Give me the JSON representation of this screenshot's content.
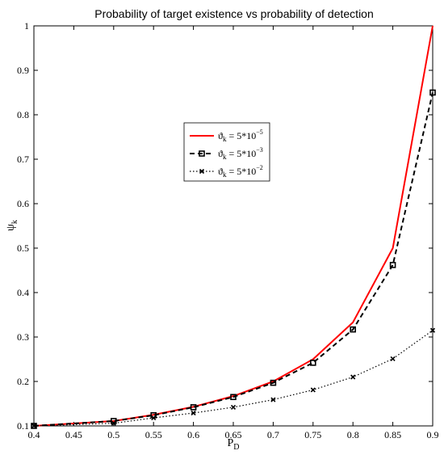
{
  "chart_data": {
    "type": "line",
    "title": "Probability of target existence vs probability of detection",
    "xlabel": "P_D",
    "ylabel": "ψ_k",
    "xlim": [
      0.4,
      0.9
    ],
    "ylim": [
      0.1,
      1.0
    ],
    "xticks": [
      "0.4",
      "0.45",
      "0.5",
      "0.55",
      "0.6",
      "0.65",
      "0.7",
      "0.75",
      "0.8",
      "0.85",
      "0.9"
    ],
    "yticks": [
      "0.1",
      "0.2",
      "0.3",
      "0.4",
      "0.5",
      "0.6",
      "0.7",
      "0.8",
      "0.9",
      "1"
    ],
    "x": [
      0.4,
      0.5,
      0.55,
      0.6,
      0.65,
      0.7,
      0.75,
      0.8,
      0.85,
      0.9
    ],
    "grid": false,
    "legend_position": "center",
    "series": [
      {
        "name": "ϑ_k = 5*10^-5",
        "legend_base": "ϑ",
        "legend_sub": "k",
        "legend_eq": " = 5*10",
        "legend_exp": "−5",
        "color": "#ff0000",
        "style": "solid",
        "marker": "none",
        "values": [
          0.1,
          0.111,
          0.125,
          0.143,
          0.167,
          0.2,
          0.25,
          0.333,
          0.5,
          1.0
        ]
      },
      {
        "name": "ϑ_k = 5*10^-3",
        "legend_base": "ϑ",
        "legend_sub": "k",
        "legend_eq": " = 5*10",
        "legend_exp": "−3",
        "color": "#000000",
        "style": "dashed",
        "marker": "square",
        "values": [
          0.1,
          0.111,
          0.124,
          0.142,
          0.165,
          0.197,
          0.242,
          0.317,
          0.462,
          0.85
        ]
      },
      {
        "name": "ϑ_k = 5*10^-2",
        "legend_base": "ϑ",
        "legend_sub": "k",
        "legend_eq": " = 5*10",
        "legend_exp": "−2",
        "color": "#000000",
        "style": "dotted",
        "marker": "x",
        "values": [
          0.1,
          0.106,
          0.118,
          0.129,
          0.142,
          0.159,
          0.181,
          0.21,
          0.251,
          0.315
        ]
      }
    ]
  }
}
